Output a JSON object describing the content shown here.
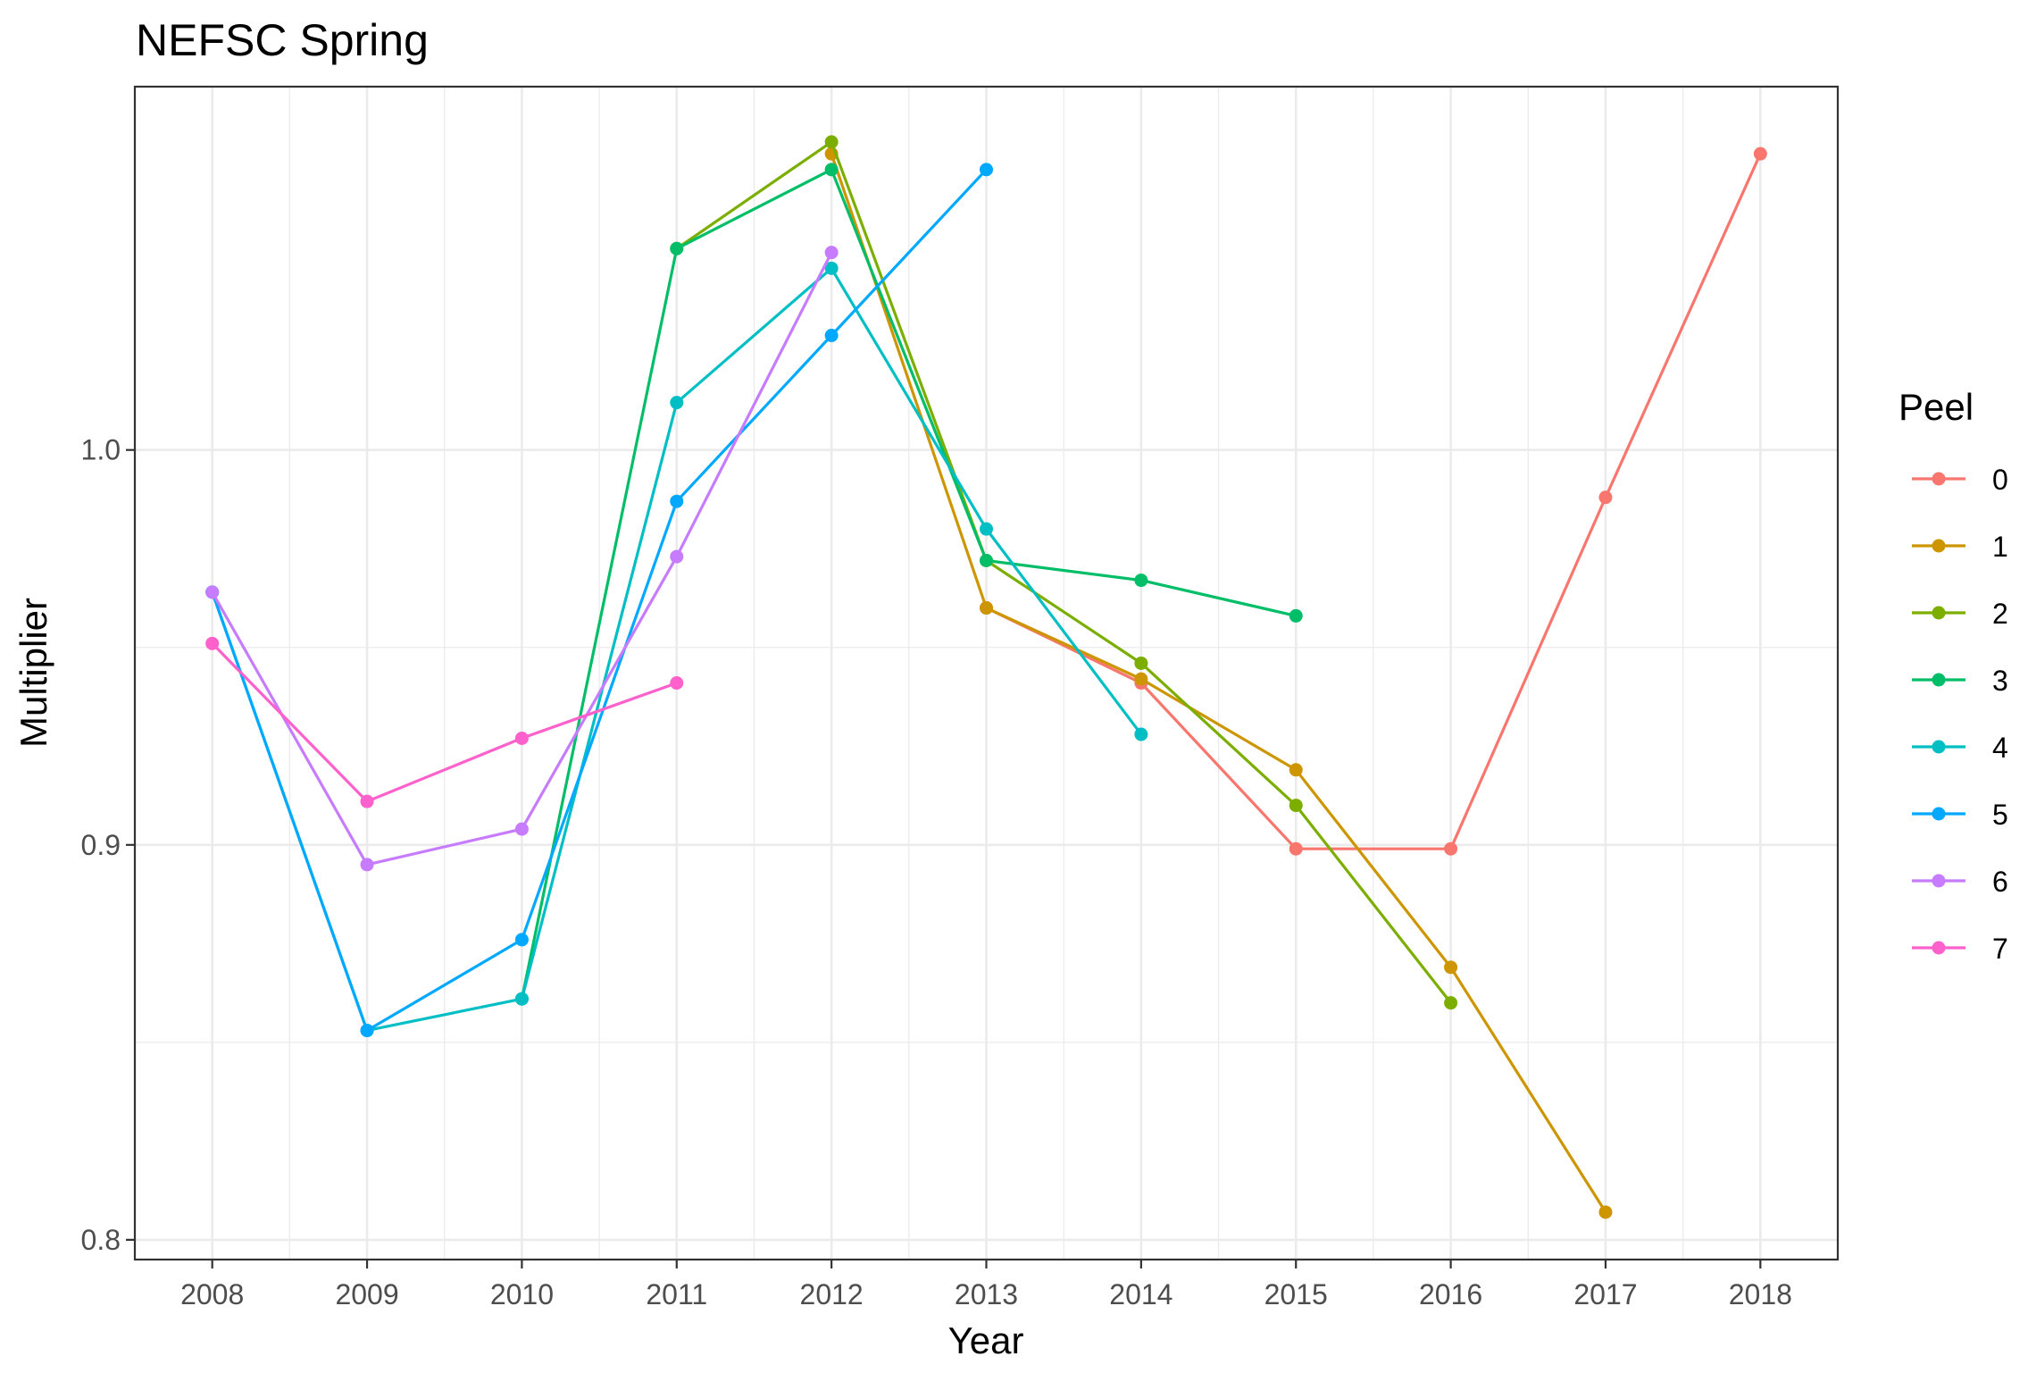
{
  "chart_data": {
    "type": "line",
    "title": "NEFSC Spring",
    "xlabel": "Year",
    "ylabel": "Multiplier",
    "xlim": [
      2007.5,
      2018.5
    ],
    "ylim": [
      0.795,
      1.092
    ],
    "x_ticks": [
      2008,
      2009,
      2010,
      2011,
      2012,
      2013,
      2014,
      2015,
      2016,
      2017,
      2018
    ],
    "y_ticks": [
      0.8,
      0.9,
      1.0
    ],
    "y_tick_labels": [
      "0.8",
      "0.9",
      "1.0"
    ],
    "grid": true,
    "legend": {
      "title": "Peel",
      "position": "right"
    },
    "series": [
      {
        "name": "0",
        "color": "#F8766D",
        "x": [
          2013,
          2014,
          2015,
          2016,
          2017,
          2018
        ],
        "y": [
          0.96,
          0.941,
          0.899,
          0.899,
          0.988,
          1.075
        ]
      },
      {
        "name": "1",
        "color": "#CD9600",
        "x": [
          2012,
          2013,
          2014,
          2015,
          2016,
          2017
        ],
        "y": [
          1.075,
          0.96,
          0.942,
          0.919,
          0.869,
          0.807
        ]
      },
      {
        "name": "2",
        "color": "#7CAE00",
        "x": [
          2011,
          2012,
          2013,
          2014,
          2015,
          2016
        ],
        "y": [
          1.051,
          1.078,
          0.972,
          0.946,
          0.91,
          0.86
        ]
      },
      {
        "name": "3",
        "color": "#00BE67",
        "x": [
          2010,
          2011,
          2012,
          2013,
          2014,
          2015
        ],
        "y": [
          0.861,
          1.051,
          1.071,
          0.972,
          0.967,
          0.958
        ]
      },
      {
        "name": "4",
        "color": "#00BFC4",
        "x": [
          2008,
          2009,
          2010,
          2011,
          2012,
          2013,
          2014
        ],
        "y": [
          0.964,
          0.853,
          0.861,
          1.012,
          1.046,
          0.98,
          0.928
        ]
      },
      {
        "name": "5",
        "color": "#00A9FF",
        "x": [
          2008,
          2009,
          2010,
          2011,
          2012,
          2013
        ],
        "y": [
          0.964,
          0.853,
          0.876,
          0.987,
          1.029,
          1.071
        ]
      },
      {
        "name": "6",
        "color": "#C77CFF",
        "x": [
          2008,
          2009,
          2010,
          2011,
          2012
        ],
        "y": [
          0.964,
          0.895,
          0.904,
          0.973,
          1.05
        ]
      },
      {
        "name": "7",
        "color": "#FF61CC",
        "x": [
          2008,
          2009,
          2010,
          2011
        ],
        "y": [
          0.951,
          0.911,
          0.927,
          0.941
        ]
      }
    ]
  }
}
